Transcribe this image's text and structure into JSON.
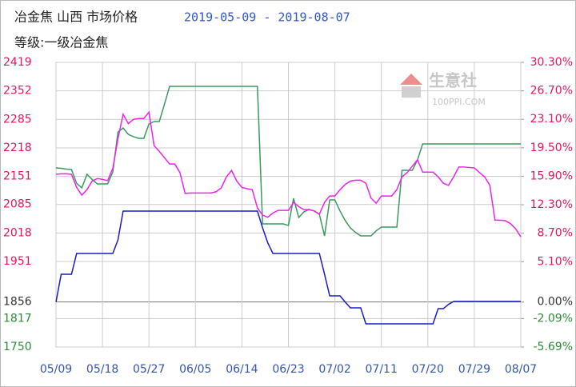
{
  "chart_data": {
    "type": "line",
    "title": "冶金焦 山西 市场价格",
    "date_range": "2019-05-09 - 2019-08-07",
    "subtitle": "等级:一级冶金焦",
    "watermark": "生意社",
    "watermark_url": "100PPI.COM",
    "categories": [
      "05/09",
      null,
      null,
      null,
      null,
      null,
      null,
      null,
      null,
      "05/18",
      null,
      null,
      null,
      null,
      null,
      null,
      null,
      null,
      "05/27",
      null,
      null,
      null,
      null,
      null,
      null,
      null,
      null,
      "06/05",
      null,
      null,
      null,
      null,
      null,
      null,
      null,
      null,
      "06/14",
      null,
      null,
      null,
      null,
      null,
      null,
      null,
      null,
      "06/23",
      null,
      null,
      null,
      null,
      null,
      null,
      null,
      null,
      "07/02",
      null,
      null,
      null,
      null,
      null,
      null,
      null,
      null,
      "07/11",
      null,
      null,
      null,
      null,
      null,
      null,
      null,
      null,
      "07/20",
      null,
      null,
      null,
      null,
      null,
      null,
      null,
      null,
      "07/29",
      null,
      null,
      null,
      null,
      null,
      null,
      null,
      null,
      "08/07"
    ],
    "ylim": [
      1750,
      2419
    ],
    "yticks": [
      2419,
      2352,
      2285,
      2218,
      2151,
      2085,
      2018,
      1951,
      1856,
      1817,
      1750
    ],
    "ytick_colors": [
      "#e8155a",
      "#e8155a",
      "#e8155a",
      "#e8155a",
      "#e8155a",
      "#e8155a",
      "#e8155a",
      "#e8155a",
      "#333333",
      "#2e8b3a",
      "#2e8b3a"
    ],
    "y2lim": [
      -5.69,
      30.3
    ],
    "y2ticks": [
      {
        "value": 30.3,
        "label": "30.30%"
      },
      {
        "value": 26.7,
        "label": "26.70%"
      },
      {
        "value": 23.1,
        "label": "23.10%"
      },
      {
        "value": 19.5,
        "label": "19.50%"
      },
      {
        "value": 15.9,
        "label": "15.90%"
      },
      {
        "value": 12.3,
        "label": "12.30%"
      },
      {
        "value": 8.7,
        "label": "8.70%"
      },
      {
        "value": 5.1,
        "label": "5.10%"
      },
      {
        "value": 0,
        "label": "0.00%"
      },
      {
        "value": -2.09,
        "label": "-2.09%"
      },
      {
        "value": -5.69,
        "label": "-5.69%"
      }
    ],
    "y2tick_colors": [
      "#e8155a",
      "#e8155a",
      "#e8155a",
      "#e8155a",
      "#e8155a",
      "#e8155a",
      "#e8155a",
      "#e8155a",
      "#333333",
      "#2e8b3a",
      "#2e8b3a"
    ],
    "grid": true,
    "series": [
      {
        "color": "#3a9a5e",
        "axis": "y2",
        "values": [
          16.95,
          16.9,
          16.8,
          16.75,
          15.0,
          14.43,
          16.15,
          15.5,
          14.93,
          14.93,
          14.93,
          16.45,
          21.5,
          22.0,
          21.2,
          20.9,
          20.7,
          20.7,
          22.5,
          22.82,
          22.82,
          25.0,
          27.27,
          27.27,
          27.27,
          27.27,
          27.27,
          27.27,
          27.27,
          27.27,
          27.27,
          27.27,
          27.27,
          27.27,
          27.27,
          27.27,
          27.27,
          27.27,
          27.27,
          27.27,
          9.88,
          9.88,
          9.88,
          9.88,
          9.88,
          9.68,
          13.11,
          10.69,
          11.39,
          11.7,
          11.5,
          11.09,
          8.36,
          12.91,
          12.91,
          11.5,
          10.3,
          9.37,
          8.8,
          8.36,
          8.36,
          8.36,
          9.0,
          9.47,
          9.47,
          9.47,
          9.47,
          16.65,
          16.65,
          16.65,
          17.97,
          19.99,
          19.99,
          19.99,
          19.99,
          19.99,
          19.99,
          19.99,
          19.99,
          19.99,
          19.99,
          19.99,
          19.99,
          19.99,
          19.99,
          19.99,
          19.99,
          19.99,
          19.99,
          19.99,
          19.99
        ]
      },
      {
        "color": "#ee22ee",
        "values": [
          2156,
          2157,
          2157,
          2156,
          2125,
          2107,
          2120,
          2140,
          2146,
          2144,
          2141,
          2170,
          2240,
          2297,
          2275,
          2285,
          2287,
          2287,
          2302,
          2223,
          2210,
          2195,
          2180,
          2180,
          2160,
          2111,
          2112,
          2112,
          2112,
          2112,
          2112,
          2115,
          2124,
          2150,
          2165,
          2140,
          2125,
          2122,
          2120,
          2077,
          2060,
          2055,
          2065,
          2071,
          2071,
          2071,
          2090,
          2080,
          2073,
          2073,
          2070,
          2062,
          2090,
          2105,
          2105,
          2120,
          2132,
          2140,
          2142,
          2142,
          2135,
          2100,
          2088,
          2105,
          2105,
          2105,
          2120,
          2150,
          2160,
          2175,
          2190,
          2161,
          2161,
          2161,
          2150,
          2135,
          2130,
          2150,
          2173,
          2173,
          2172,
          2171,
          2160,
          2150,
          2130,
          2048,
          2048,
          2047,
          2040,
          2028,
          2009
        ]
      },
      {
        "color": "#1a1acc",
        "axis": "y2",
        "values": [
          0,
          3.51,
          3.51,
          3.51,
          6.14,
          6.14,
          6.14,
          6.14,
          6.14,
          6.14,
          6.14,
          6.14,
          7.86,
          11.5,
          11.5,
          11.5,
          11.5,
          11.5,
          11.5,
          11.5,
          11.5,
          11.5,
          11.5,
          11.5,
          11.5,
          11.5,
          11.5,
          11.5,
          11.5,
          11.5,
          11.5,
          11.5,
          11.5,
          11.5,
          11.5,
          11.5,
          11.5,
          11.5,
          11.5,
          11.5,
          9.37,
          7.5,
          6.14,
          6.14,
          6.14,
          6.14,
          6.14,
          6.14,
          6.14,
          6.14,
          6.14,
          6.14,
          3.5,
          0.78,
          0.78,
          0.78,
          0,
          -0.74,
          -0.74,
          -0.74,
          -2.76,
          -2.76,
          -2.76,
          -2.76,
          -2.76,
          -2.76,
          -2.76,
          -2.76,
          -2.76,
          -2.76,
          -2.76,
          -2.76,
          -2.76,
          -2.76,
          -0.84,
          -0.84,
          -0.3,
          0.07,
          0.07,
          0.07,
          0.07,
          0.07,
          0.07,
          0.07,
          0.07,
          0.07,
          0.07,
          0.07,
          0.07,
          0.07,
          0.07
        ]
      }
    ]
  }
}
